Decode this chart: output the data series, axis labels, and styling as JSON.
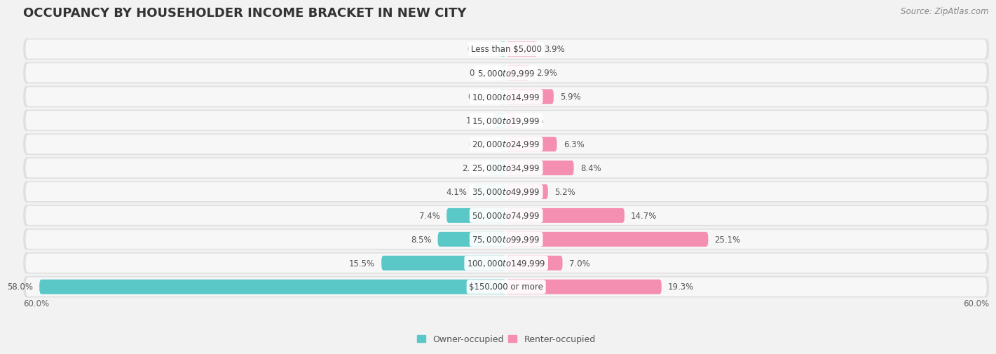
{
  "title": "OCCUPANCY BY HOUSEHOLDER INCOME BRACKET IN NEW CITY",
  "source": "Source: ZipAtlas.com",
  "categories": [
    "Less than $5,000",
    "$5,000 to $9,999",
    "$10,000 to $14,999",
    "$15,000 to $19,999",
    "$20,000 to $24,999",
    "$25,000 to $34,999",
    "$35,000 to $49,999",
    "$50,000 to $74,999",
    "$75,000 to $99,999",
    "$100,000 to $149,999",
    "$150,000 or more"
  ],
  "owner_values": [
    0.84,
    0.55,
    0.78,
    1.6,
    0.65,
    2.1,
    4.1,
    7.4,
    8.5,
    15.5,
    58.0
  ],
  "renter_values": [
    3.9,
    2.9,
    5.9,
    1.3,
    6.3,
    8.4,
    5.2,
    14.7,
    25.1,
    7.0,
    19.3
  ],
  "owner_color": "#5BC8C8",
  "renter_color": "#F48FB1",
  "background_color": "#f2f2f2",
  "row_bg_light": "#e8e8e8",
  "row_bg_inner": "#f8f8f8",
  "axis_max": 60.0,
  "title_fontsize": 13,
  "label_fontsize": 8.5,
  "tick_fontsize": 8.5,
  "source_fontsize": 8.5,
  "legend_fontsize": 9,
  "bar_height": 0.62,
  "cat_label_fontsize": 8.5,
  "pct_label_fontsize": 8.5
}
